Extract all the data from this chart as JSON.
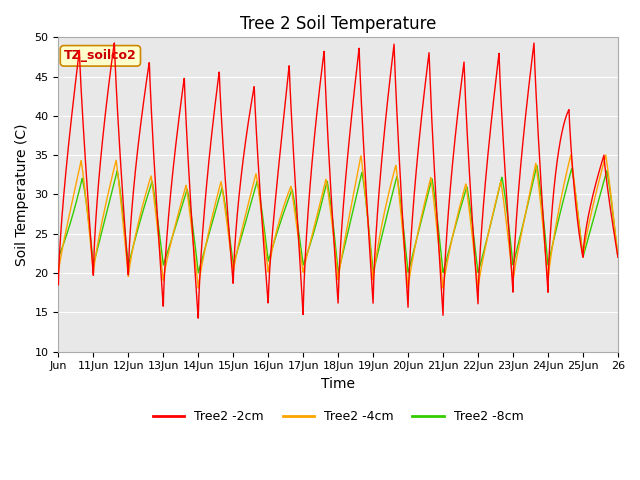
{
  "title": "Tree 2 Soil Temperature",
  "xlabel": "Time",
  "ylabel": "Soil Temperature (C)",
  "ylim": [
    10,
    50
  ],
  "annotation": "TZ_soilco2",
  "line_colors": [
    "#ff0000",
    "#ffa500",
    "#33cc00"
  ],
  "line_labels": [
    "Tree2 -2cm",
    "Tree2 -4cm",
    "Tree2 -8cm"
  ],
  "bg_color": "#e8e8e8",
  "fig_color": "#ffffff",
  "x_tick_labels": [
    "Jun",
    "11Jun",
    "12Jun",
    "13Jun",
    "14Jun",
    "15Jun",
    "16Jun",
    "17Jun",
    "18Jun",
    "19Jun",
    "20Jun",
    "21Jun",
    "22Jun",
    "23Jun",
    "24Jun",
    "25Jun",
    "26"
  ],
  "grid_color": "#ffffff",
  "title_fontsize": 12,
  "axis_label_fontsize": 10,
  "tick_fontsize": 8,
  "legend_fontsize": 9
}
